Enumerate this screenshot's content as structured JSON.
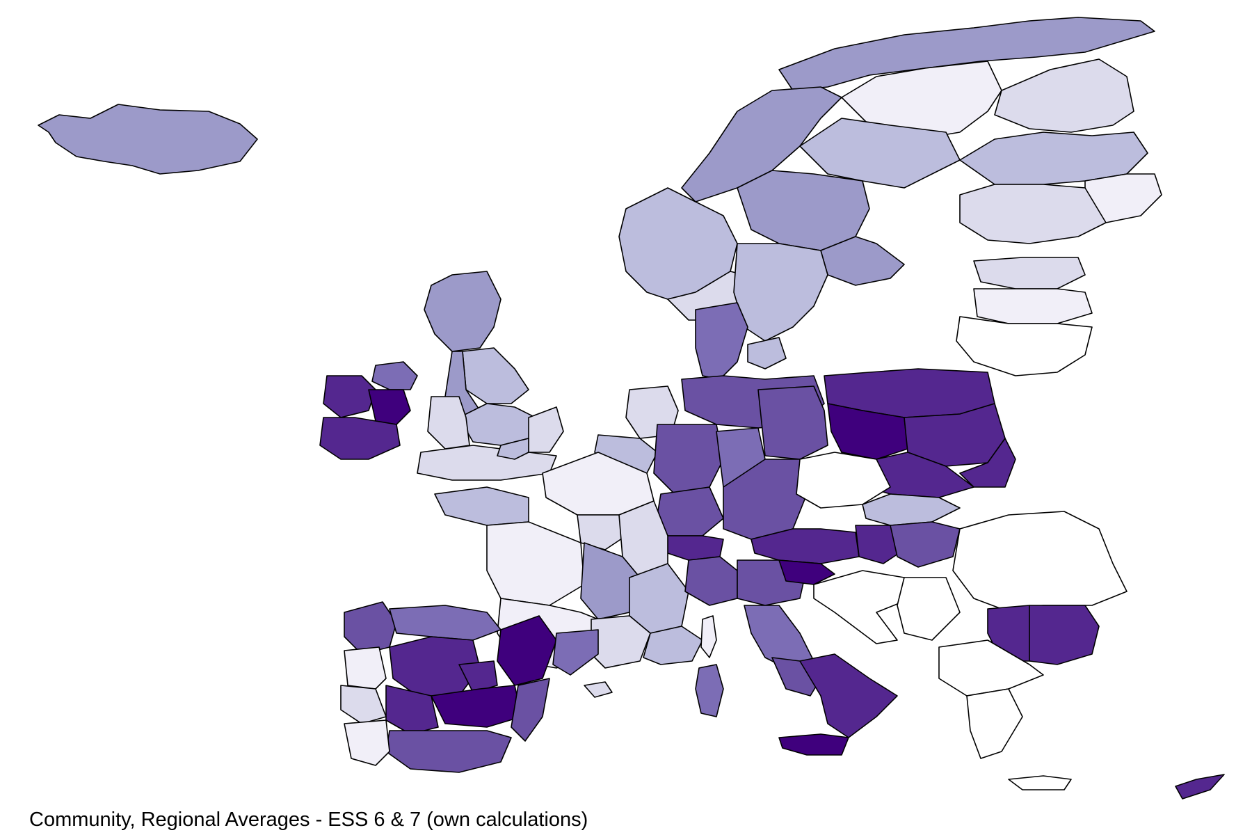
{
  "caption": "Community, Regional Averages - ESS 6 & 7 (own calculations)",
  "map": {
    "type": "choropleth",
    "regions": "European NUTS regions",
    "color_scheme": "sequential purples",
    "colors": {
      "no_data": "#ffffff",
      "very_low": "#f1eff8",
      "low": "#dcdbec",
      "medium_low": "#bcbddd",
      "medium": "#9c9ac9",
      "medium_high": "#7c6db5",
      "high": "#6a51a3",
      "very_high": "#54278f",
      "highest": "#3f007d"
    },
    "legend": "none"
  }
}
